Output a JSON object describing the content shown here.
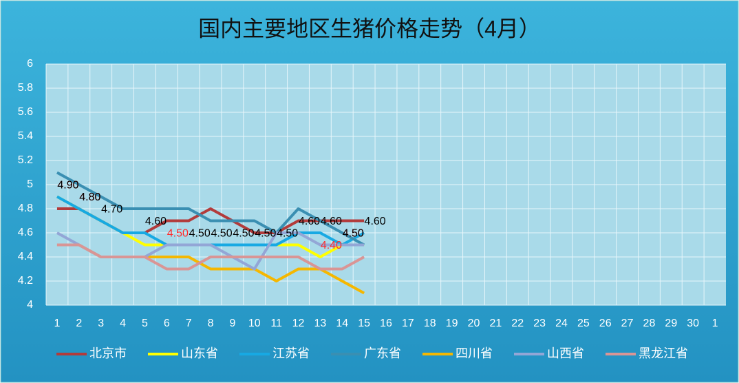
{
  "chart_data": {
    "type": "line",
    "title": "国内主要地区生猪价格走势（4月）",
    "categories": [
      "1",
      "2",
      "3",
      "4",
      "5",
      "6",
      "7",
      "8",
      "9",
      "10",
      "11",
      "12",
      "13",
      "14",
      "15",
      "16",
      "17",
      "18",
      "19",
      "20",
      "21",
      "22",
      "23",
      "24",
      "25",
      "26",
      "27",
      "28",
      "29",
      "30",
      "1"
    ],
    "ylim": [
      4,
      6
    ],
    "yticks": [
      4,
      4.2,
      4.4,
      4.6,
      4.8,
      5,
      5.2,
      5.4,
      5.6,
      5.8,
      6
    ],
    "grid": true,
    "legend": "bottom",
    "series": [
      {
        "name": "北京市",
        "color": "#b23b3b",
        "values": [
          4.8,
          4.8,
          4.7,
          4.6,
          4.6,
          4.7,
          4.7,
          4.8,
          4.7,
          4.6,
          4.6,
          4.7,
          4.7,
          4.7,
          4.7,
          null,
          null,
          null,
          null,
          null,
          null,
          null,
          null,
          null,
          null,
          null,
          null,
          null,
          null,
          null,
          null
        ]
      },
      {
        "name": "山东省",
        "color": "#ffff00",
        "label_color": "#ff2a2a",
        "values": [
          4.9,
          4.8,
          4.7,
          4.6,
          4.5,
          4.5,
          4.5,
          4.5,
          4.5,
          4.5,
          4.5,
          4.5,
          4.4,
          4.5,
          4.5,
          null,
          null,
          null,
          null,
          null,
          null,
          null,
          null,
          null,
          null,
          null,
          null,
          null,
          null,
          null,
          null
        ],
        "value_labels": [
          "4.90",
          "4.80",
          null,
          null,
          null,
          "4.50",
          null,
          null,
          null,
          null,
          null,
          null,
          "4.40",
          "4.50",
          null,
          null,
          null,
          null,
          null,
          null,
          null,
          null,
          null,
          null,
          null,
          null,
          null,
          null,
          null,
          null,
          null
        ]
      },
      {
        "name": "江苏省",
        "color": "#17a9e3",
        "label_color": "#000000",
        "values": [
          4.9,
          4.8,
          4.7,
          4.6,
          4.6,
          4.5,
          4.5,
          4.5,
          4.5,
          4.5,
          4.5,
          4.6,
          4.6,
          4.5,
          4.6,
          null,
          null,
          null,
          null,
          null,
          null,
          null,
          null,
          null,
          null,
          null,
          null,
          null,
          null,
          null,
          null
        ],
        "value_labels": [
          "4.90",
          "4.80",
          "4.70",
          null,
          "4.60",
          null,
          "4.50",
          "4.50",
          "4.50",
          "4.50",
          "4.50",
          "4.60",
          "4.60",
          "4.50",
          "4.60",
          null,
          null,
          null,
          null,
          null,
          null,
          null,
          null,
          null,
          null,
          null,
          null,
          null,
          null,
          null,
          null
        ]
      },
      {
        "name": "广东省",
        "color": "#3a8fb2",
        "values": [
          5.1,
          5.0,
          4.9,
          4.8,
          4.8,
          4.8,
          4.8,
          4.7,
          4.7,
          4.7,
          4.6,
          4.8,
          4.7,
          4.6,
          4.5,
          null,
          null,
          null,
          null,
          null,
          null,
          null,
          null,
          null,
          null,
          null,
          null,
          null,
          null,
          null,
          null
        ]
      },
      {
        "name": "四川省",
        "color": "#f5b700",
        "values": [
          4.5,
          4.5,
          4.4,
          4.4,
          4.4,
          4.4,
          4.4,
          4.3,
          4.3,
          4.3,
          4.2,
          4.3,
          4.3,
          4.2,
          4.1,
          null,
          null,
          null,
          null,
          null,
          null,
          null,
          null,
          null,
          null,
          null,
          null,
          null,
          null,
          null,
          null
        ]
      },
      {
        "name": "山西省",
        "color": "#93a6d6",
        "values": [
          4.6,
          4.5,
          4.4,
          4.4,
          4.4,
          4.5,
          4.5,
          4.5,
          4.4,
          4.3,
          4.6,
          4.6,
          4.5,
          4.5,
          4.5,
          null,
          null,
          null,
          null,
          null,
          null,
          null,
          null,
          null,
          null,
          null,
          null,
          null,
          null,
          null,
          null
        ]
      },
      {
        "name": "黑龙江省",
        "color": "#d99595",
        "values": [
          4.5,
          4.5,
          4.4,
          4.4,
          4.4,
          4.3,
          4.3,
          4.4,
          4.4,
          4.4,
          4.4,
          4.4,
          4.3,
          4.3,
          4.4,
          null,
          null,
          null,
          null,
          null,
          null,
          null,
          null,
          null,
          null,
          null,
          null,
          null,
          null,
          null,
          null
        ]
      }
    ]
  }
}
